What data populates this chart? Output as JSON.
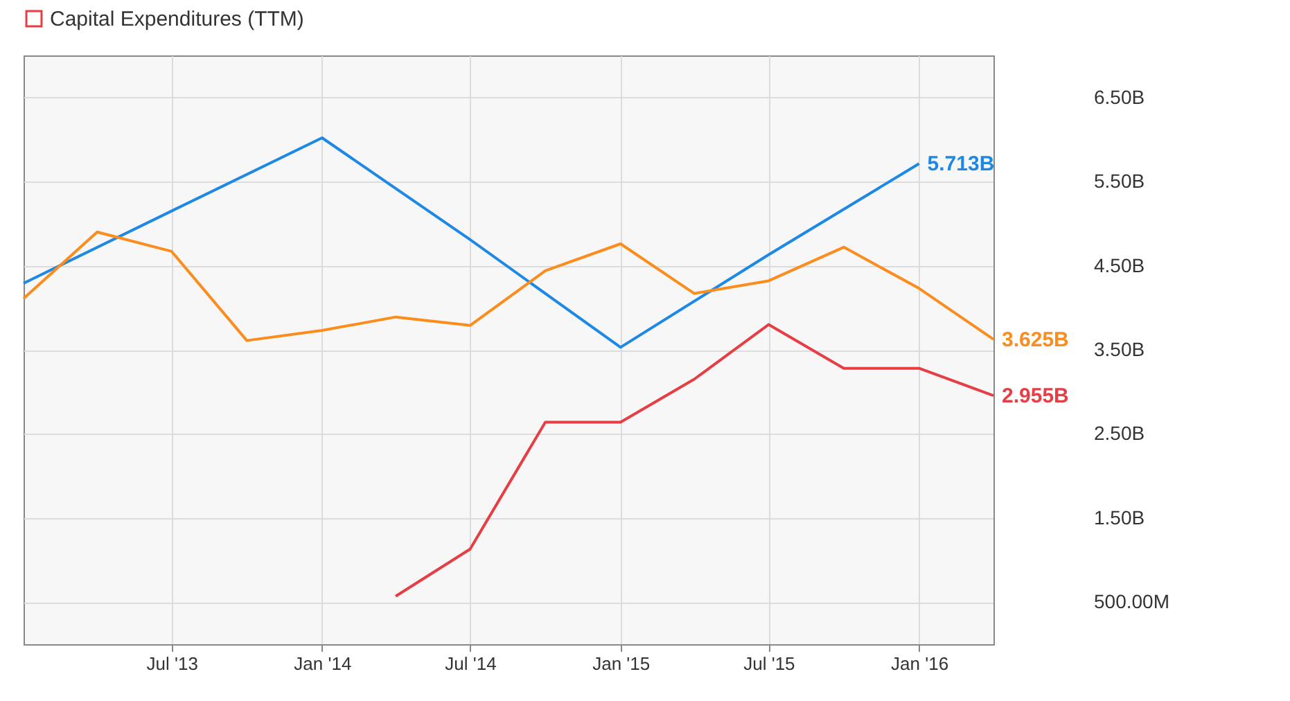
{
  "chart_data": {
    "type": "line",
    "xlim": [
      "2013-01",
      "2016-04"
    ],
    "xticks": [
      {
        "value": "2013-07",
        "label": "Jul '13"
      },
      {
        "value": "2014-01",
        "label": "Jan '14"
      },
      {
        "value": "2014-07",
        "label": "Jul '14"
      },
      {
        "value": "2015-01",
        "label": "Jan '15"
      },
      {
        "value": "2015-07",
        "label": "Jul '15"
      },
      {
        "value": "2016-01",
        "label": "Jan '16"
      }
    ],
    "ylim": [
      0,
      7000000000
    ],
    "yticks": [
      {
        "value": 500000000,
        "label": "500.00M"
      },
      {
        "value": 1500000000,
        "label": "1.50B"
      },
      {
        "value": 2500000000,
        "label": "2.50B"
      },
      {
        "value": 3500000000,
        "label": "3.50B"
      },
      {
        "value": 4500000000,
        "label": "4.50B"
      },
      {
        "value": 5500000000,
        "label": "5.50B"
      },
      {
        "value": 6500000000,
        "label": "6.50B"
      }
    ],
    "grid": true,
    "legend": "top left",
    "series": [
      {
        "color": "#1e88e5",
        "x": [
          "2013-01",
          "2013-07",
          "2014-01",
          "2014-07",
          "2015-01",
          "2015-07",
          "2016-01"
        ],
        "values": [
          4290000000,
          5150000000,
          6020000000,
          4810000000,
          3530000000,
          4630000000,
          5713000000
        ],
        "value_labels": [
          null,
          null,
          null,
          null,
          null,
          null,
          "5.713B"
        ]
      },
      {
        "color": "#fb8c1e",
        "x": [
          "2013-01",
          "2013-04",
          "2013-07",
          "2013-10",
          "2014-01",
          "2014-04",
          "2014-07",
          "2014-10",
          "2015-01",
          "2015-04",
          "2015-07",
          "2015-10",
          "2016-01",
          "2016-04"
        ],
        "values": [
          4110000000,
          4900000000,
          4670000000,
          3610000000,
          3730000000,
          3890000000,
          3790000000,
          4440000000,
          4760000000,
          4170000000,
          4320000000,
          4720000000,
          4230000000,
          3625000000
        ],
        "value_labels": [
          null,
          null,
          null,
          null,
          null,
          null,
          null,
          null,
          null,
          null,
          null,
          null,
          null,
          "3.625B"
        ]
      },
      {
        "name": "Capital Expenditures (TTM)",
        "color": "#e53e45",
        "x": [
          "2014-04",
          "2014-07",
          "2014-10",
          "2015-01",
          "2015-04",
          "2015-07",
          "2015-10",
          "2016-01",
          "2016-04"
        ],
        "values": [
          570000000,
          1130000000,
          2640000000,
          2640000000,
          3150000000,
          3800000000,
          3280000000,
          3280000000,
          2955000000
        ],
        "value_labels": [
          null,
          null,
          null,
          null,
          null,
          null,
          null,
          null,
          "2.955B"
        ]
      }
    ]
  }
}
